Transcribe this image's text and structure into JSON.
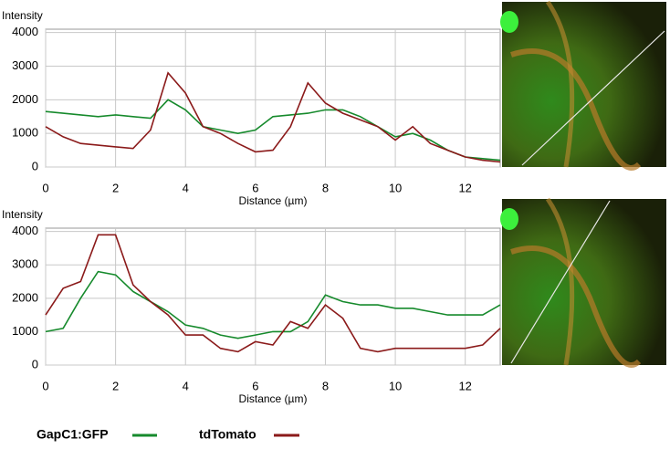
{
  "chart_data": [
    {
      "type": "line",
      "y_label": "Intensity",
      "x_label": "Distance (µm)",
      "x": [
        0,
        0.5,
        1,
        1.5,
        2,
        2.5,
        3,
        3.5,
        4,
        4.5,
        5,
        5.5,
        6,
        6.5,
        7,
        7.5,
        8,
        8.5,
        9,
        9.5,
        10,
        10.5,
        11,
        11.5,
        12,
        12.5,
        13
      ],
      "series": [
        {
          "name": "GapC1:GFP",
          "color": "#168a2c",
          "values": [
            1650,
            1600,
            1550,
            1500,
            1550,
            1500,
            1450,
            2000,
            1700,
            1200,
            1100,
            1000,
            1100,
            1500,
            1550,
            1600,
            1700,
            1700,
            1500,
            1200,
            900,
            1000,
            800,
            500,
            300,
            250,
            200
          ]
        },
        {
          "name": "tdTomato",
          "color": "#8b1a1a",
          "values": [
            1200,
            900,
            700,
            650,
            600,
            550,
            1100,
            2800,
            2200,
            1200,
            1000,
            700,
            450,
            500,
            1200,
            2500,
            1900,
            1600,
            1400,
            1200,
            800,
            1200,
            700,
            500,
            300,
            200,
            150
          ]
        }
      ],
      "xlim": [
        0,
        13
      ],
      "xticks": [
        0,
        2,
        4,
        6,
        8,
        10,
        12
      ],
      "ylim": [
        0,
        4100
      ],
      "yticks": [
        0,
        1000,
        2000,
        3000,
        4000
      ],
      "grid": true
    },
    {
      "type": "line",
      "y_label": "Intensity",
      "x_label": "Distance (µm)",
      "x": [
        0,
        0.5,
        1,
        1.5,
        2,
        2.5,
        3,
        3.5,
        4,
        4.5,
        5,
        5.5,
        6,
        6.5,
        7,
        7.5,
        8,
        8.5,
        9,
        9.5,
        10,
        10.5,
        11,
        11.5,
        12,
        12.5,
        13
      ],
      "series": [
        {
          "color": "#168a2c",
          "values": [
            1000,
            1100,
            2000,
            2800,
            2700,
            2200,
            1900,
            1600,
            1200,
            1100,
            900,
            800,
            900,
            1000,
            1000,
            1300,
            2100,
            1900,
            1800,
            1800,
            1700,
            1700,
            1600,
            1500,
            1500,
            1500,
            1800
          ]
        },
        {
          "color": "#8b1a1a",
          "values": [
            1500,
            2300,
            2500,
            3900,
            3900,
            2400,
            1900,
            1500,
            900,
            900,
            500,
            400,
            700,
            600,
            1300,
            1100,
            1800,
            1400,
            500,
            400,
            500,
            500,
            500,
            500,
            500,
            600,
            1100
          ]
        }
      ],
      "xlim": [
        0,
        13
      ],
      "xticks": [
        0,
        2,
        4,
        6,
        8,
        10,
        12
      ],
      "ylim": [
        0,
        4100
      ],
      "yticks": [
        0,
        1000,
        2000,
        3000,
        4000
      ],
      "grid": true
    }
  ]
}
